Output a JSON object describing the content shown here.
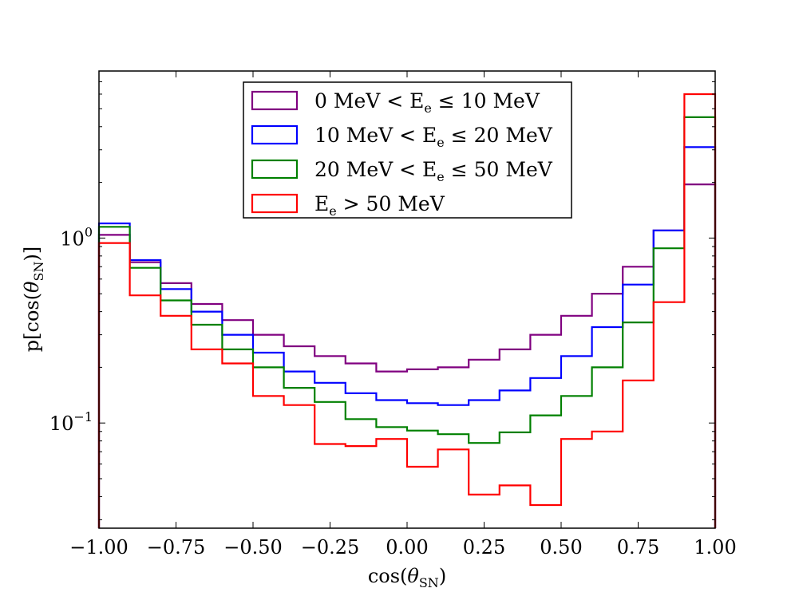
{
  "chart_data": {
    "type": "step-histogram",
    "title": "",
    "xlabel": "cos(θSN)",
    "ylabel": "p[cos(θSN)]",
    "xscale": "linear",
    "yscale": "log",
    "xlim": [
      -1.0,
      1.0
    ],
    "ylim": [
      0.027,
      8.0
    ],
    "xticks": [
      -1.0,
      -0.75,
      -0.5,
      -0.25,
      0.0,
      0.25,
      0.5,
      0.75,
      1.0
    ],
    "xtick_labels": [
      "−1.00",
      "−0.75",
      "−0.50",
      "−0.25",
      "0.00",
      "0.25",
      "0.50",
      "0.75",
      "1.00"
    ],
    "yticks": [
      {
        "value": 1.0,
        "base": "10",
        "exp": "0"
      },
      {
        "value": 0.1,
        "base": "10",
        "exp": "−1"
      }
    ],
    "bin_edges": [
      -1.0,
      -0.9,
      -0.8,
      -0.7,
      -0.6,
      -0.5,
      -0.4,
      -0.3,
      -0.2,
      -0.1,
      0.0,
      0.1,
      0.2,
      0.3,
      0.4,
      0.5,
      0.6,
      0.7,
      0.8,
      0.9,
      1.0
    ],
    "legend_position": "upper-center",
    "series": [
      {
        "name": "0 MeV<Ee≤10 MeV",
        "label_parts": {
          "pre": "0 MeV",
          "sub": "e",
          "post": "≤ 10 MeV"
        },
        "color": "#800080",
        "values": [
          1.04,
          0.74,
          0.57,
          0.44,
          0.36,
          0.3,
          0.26,
          0.23,
          0.21,
          0.19,
          0.195,
          0.2,
          0.22,
          0.25,
          0.3,
          0.38,
          0.5,
          0.7,
          1.1,
          1.95
        ]
      },
      {
        "name": "10 MeV<Ee≤20 MeV",
        "label_parts": {
          "pre": "10 MeV",
          "sub": "e",
          "post": "≤ 20 MeV"
        },
        "color": "#0000ff",
        "values": [
          1.2,
          0.76,
          0.53,
          0.4,
          0.3,
          0.24,
          0.19,
          0.165,
          0.145,
          0.133,
          0.128,
          0.125,
          0.133,
          0.15,
          0.175,
          0.23,
          0.33,
          0.56,
          1.1,
          3.1
        ]
      },
      {
        "name": "20 MeV<Ee≤50 MeV",
        "label_parts": {
          "pre": "20 MeV",
          "sub": "e",
          "post": "≤ 50 MeV"
        },
        "color": "#008000",
        "values": [
          1.15,
          0.69,
          0.46,
          0.34,
          0.25,
          0.2,
          0.155,
          0.13,
          0.105,
          0.095,
          0.091,
          0.087,
          0.078,
          0.089,
          0.11,
          0.14,
          0.2,
          0.35,
          0.88,
          4.5
        ]
      },
      {
        "name": "Ee > 50 MeV",
        "label_parts": {
          "pre": "",
          "sub": "e",
          "post": "> 50 MeV"
        },
        "color": "#ff0000",
        "values": [
          0.94,
          0.49,
          0.38,
          0.25,
          0.21,
          0.14,
          0.125,
          0.077,
          0.075,
          0.082,
          0.058,
          0.072,
          0.041,
          0.046,
          0.036,
          0.082,
          0.09,
          0.17,
          0.45,
          6.0
        ]
      }
    ]
  }
}
